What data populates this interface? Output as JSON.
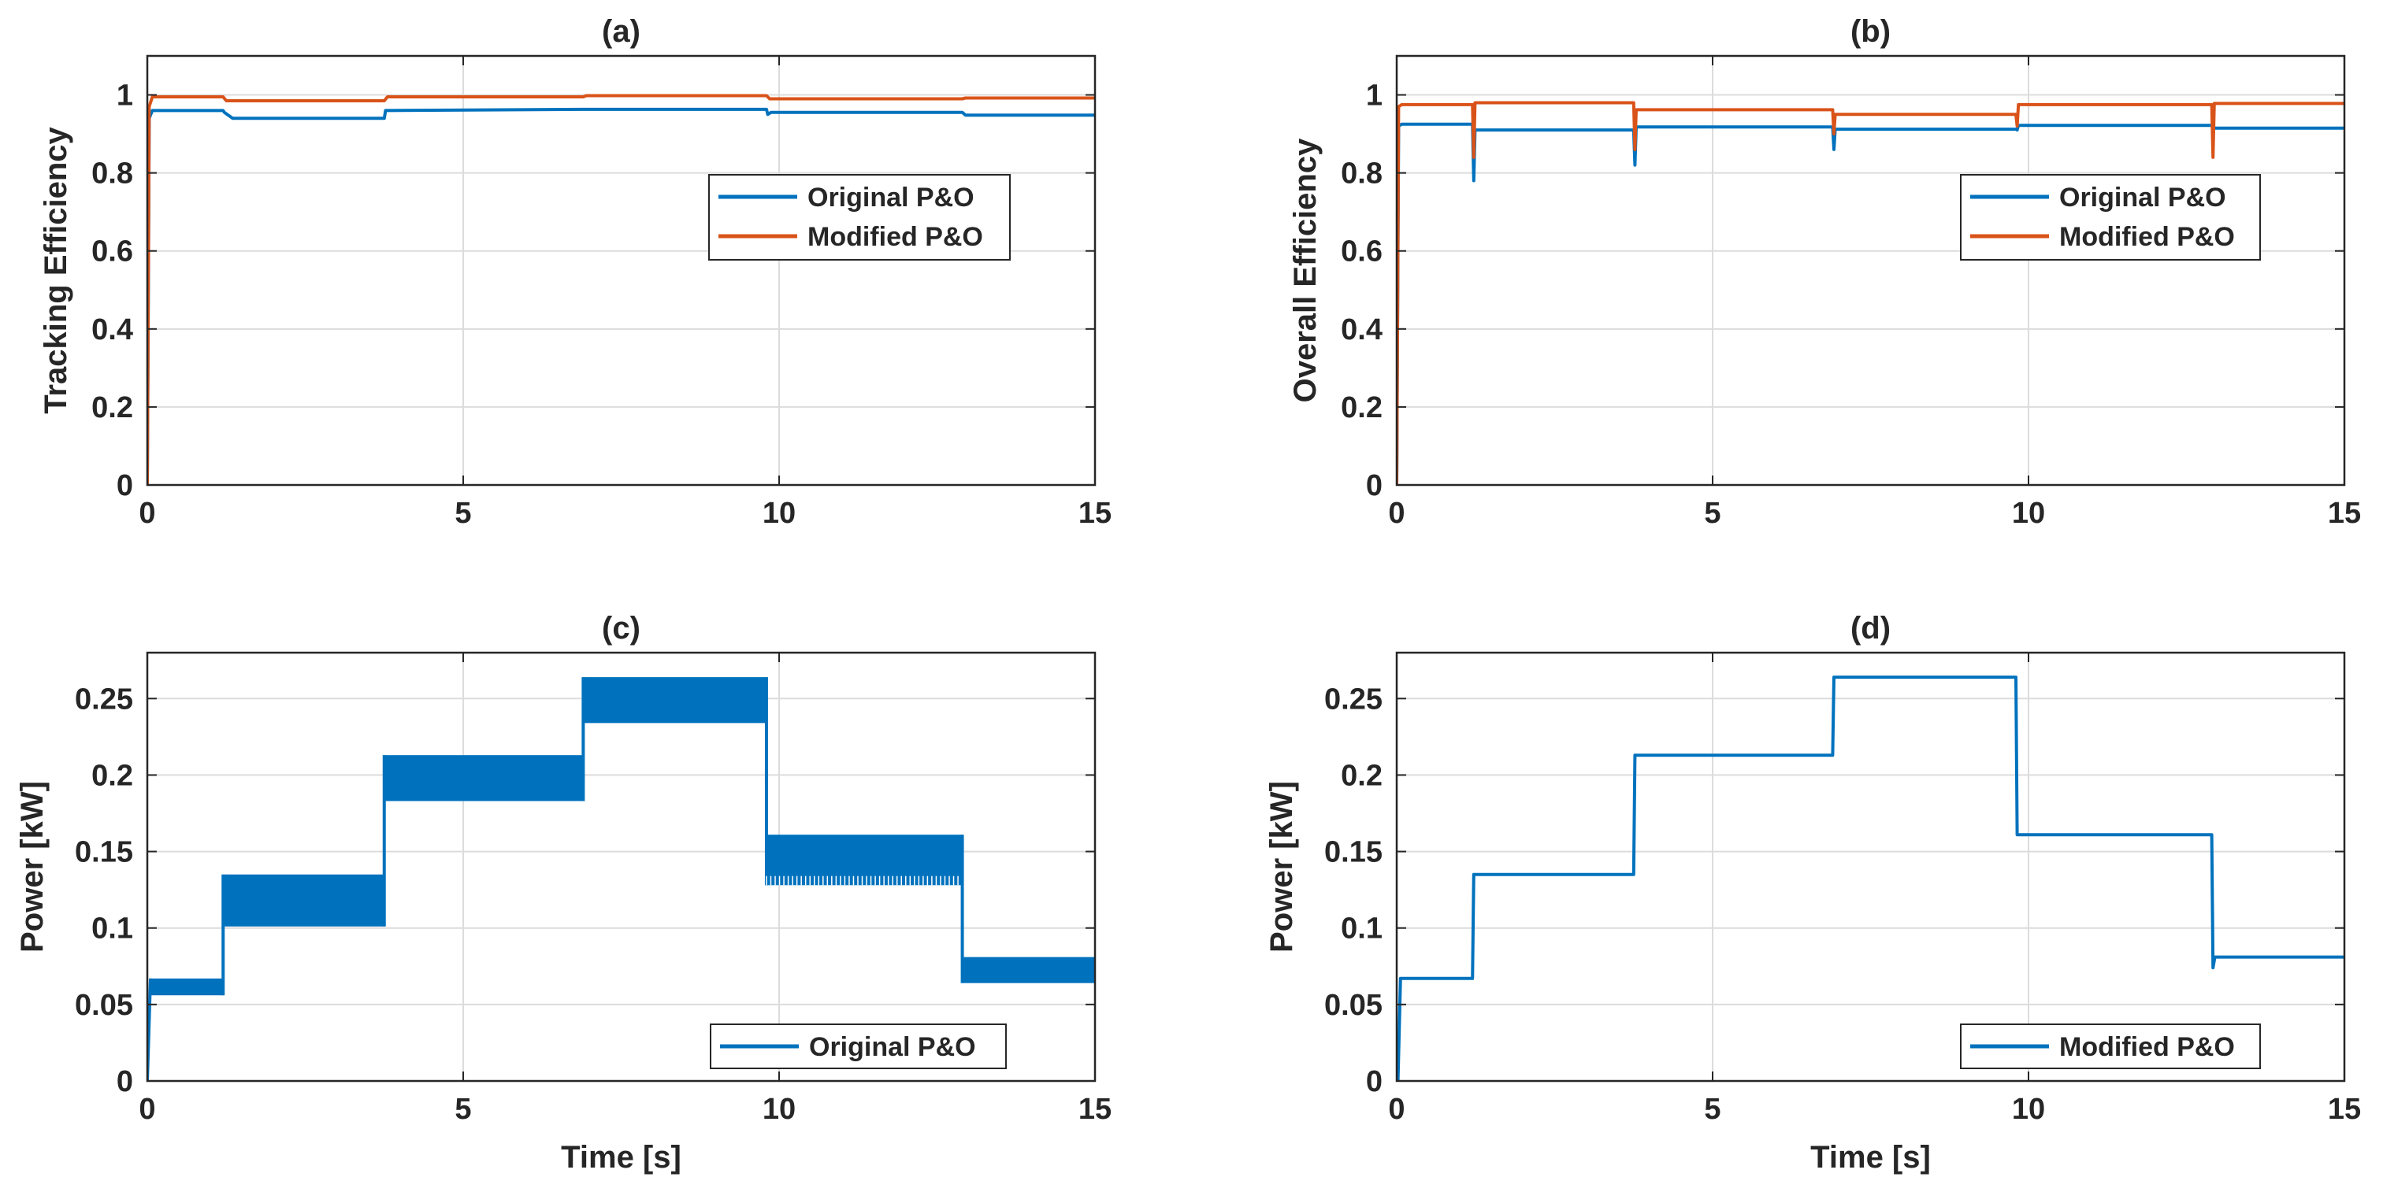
{
  "figure": {
    "colors": {
      "series1": "#0072BD",
      "series2": "#D95319",
      "axis": "#262626",
      "grid": "#dcdcdc"
    }
  },
  "chart_data": [
    {
      "id": "a",
      "type": "line",
      "title": "(a)",
      "xlabel": "",
      "ylabel": "Tracking Efficiency",
      "xlim": [
        0,
        15
      ],
      "ylim": [
        0,
        1.1
      ],
      "xticks": [
        0,
        5,
        10,
        15
      ],
      "xtick_labels": [
        "0",
        "5",
        "10",
        "15"
      ],
      "yticks": [
        0,
        0.2,
        0.4,
        0.6,
        0.8,
        1
      ],
      "ytick_labels": [
        "0",
        "0.2",
        "0.4",
        "0.6",
        "0.8",
        "1"
      ],
      "grid": true,
      "legend": {
        "position": "center-right",
        "entries": [
          "Original P&O",
          "Modified P&O"
        ]
      },
      "series": [
        {
          "name": "Original P&O",
          "color": "#0072BD",
          "width": 4,
          "x": [
            0,
            0.03,
            0.08,
            1.2,
            1.22,
            1.35,
            3.75,
            3.77,
            6.9,
            9.8,
            9.82,
            9.87,
            12.9,
            12.95,
            15
          ],
          "y": [
            0,
            0.94,
            0.96,
            0.96,
            0.955,
            0.94,
            0.94,
            0.96,
            0.963,
            0.963,
            0.95,
            0.955,
            0.955,
            0.948,
            0.948
          ]
        },
        {
          "name": "Modified P&O",
          "color": "#D95319",
          "width": 4,
          "x": [
            0,
            0.03,
            0.08,
            1.2,
            1.25,
            3.75,
            3.8,
            6.9,
            6.95,
            9.8,
            9.85,
            12.9,
            12.95,
            15
          ],
          "y": [
            0,
            0.97,
            0.995,
            0.995,
            0.985,
            0.985,
            0.995,
            0.995,
            0.998,
            0.998,
            0.99,
            0.99,
            0.992,
            0.992
          ]
        }
      ]
    },
    {
      "id": "b",
      "type": "line",
      "title": "(b)",
      "xlabel": "",
      "ylabel": "Overall Efficiency",
      "xlim": [
        0,
        15
      ],
      "ylim": [
        0,
        1.1
      ],
      "xticks": [
        0,
        5,
        10,
        15
      ],
      "xtick_labels": [
        "0",
        "5",
        "10",
        "15"
      ],
      "yticks": [
        0,
        0.2,
        0.4,
        0.6,
        0.8,
        1
      ],
      "ytick_labels": [
        "0",
        "0.2",
        "0.4",
        "0.6",
        "0.8",
        "1"
      ],
      "grid": true,
      "legend": {
        "position": "center-right",
        "entries": [
          "Original P&O",
          "Modified P&O"
        ]
      },
      "series": [
        {
          "name": "Original P&O",
          "color": "#0072BD",
          "width": 4,
          "x": [
            0,
            0.03,
            0.08,
            1.2,
            1.22,
            1.24,
            1.3,
            3.75,
            3.77,
            3.79,
            3.85,
            6.9,
            6.92,
            6.94,
            7.0,
            9.8,
            9.82,
            9.84,
            9.9,
            12.9,
            12.95,
            15
          ],
          "y": [
            0,
            0.92,
            0.925,
            0.925,
            0.78,
            0.91,
            0.91,
            0.91,
            0.82,
            0.918,
            0.918,
            0.918,
            0.86,
            0.912,
            0.912,
            0.912,
            0.91,
            0.922,
            0.922,
            0.922,
            0.915,
            0.915
          ]
        },
        {
          "name": "Modified P&O",
          "color": "#D95319",
          "width": 4,
          "x": [
            0,
            0.03,
            0.08,
            1.2,
            1.22,
            1.24,
            1.3,
            3.75,
            3.77,
            3.79,
            3.85,
            6.9,
            6.92,
            6.94,
            7.0,
            9.8,
            9.82,
            9.84,
            9.9,
            12.9,
            12.92,
            12.94,
            13.0,
            15
          ],
          "y": [
            0,
            0.97,
            0.975,
            0.975,
            0.84,
            0.98,
            0.98,
            0.98,
            0.86,
            0.962,
            0.962,
            0.962,
            0.9,
            0.95,
            0.95,
            0.95,
            0.92,
            0.975,
            0.975,
            0.975,
            0.84,
            0.978,
            0.978,
            0.978
          ]
        }
      ]
    },
    {
      "id": "c",
      "type": "area",
      "title": "(c)",
      "xlabel": "Time [s]",
      "ylabel": "Power [kW]",
      "xlim": [
        0,
        15
      ],
      "ylim": [
        0,
        0.28
      ],
      "xticks": [
        0,
        5,
        10,
        15
      ],
      "xtick_labels": [
        "0",
        "5",
        "10",
        "15"
      ],
      "yticks": [
        0,
        0.05,
        0.1,
        0.15,
        0.2,
        0.25
      ],
      "ytick_labels": [
        "0",
        "0.05",
        "0.1",
        "0.15",
        "0.2",
        "0.25"
      ],
      "grid": true,
      "legend": {
        "position": "bottom-right",
        "entries": [
          "Original P&O"
        ]
      },
      "series": [
        {
          "name": "Original P&O",
          "color": "#0072BD",
          "bands": [
            {
              "x0": 0.05,
              "x1": 1.2,
              "ymin": 0.056,
              "ymax": 0.067
            },
            {
              "x0": 1.2,
              "x1": 3.75,
              "ymin": 0.101,
              "ymax": 0.135
            },
            {
              "x0": 3.75,
              "x1": 6.9,
              "ymin": 0.183,
              "ymax": 0.213
            },
            {
              "x0": 6.9,
              "x1": 9.8,
              "ymin": 0.234,
              "ymax": 0.264
            },
            {
              "x0": 9.8,
              "x1": 12.9,
              "ymin": 0.128,
              "ymax": 0.161
            },
            {
              "x0": 12.9,
              "x1": 15,
              "ymin": 0.064,
              "ymax": 0.081
            }
          ]
        }
      ]
    },
    {
      "id": "d",
      "type": "line",
      "title": "(d)",
      "xlabel": "Time [s]",
      "ylabel": "Power [kW]",
      "xlim": [
        0,
        15
      ],
      "ylim": [
        0,
        0.28
      ],
      "xticks": [
        0,
        5,
        10,
        15
      ],
      "xtick_labels": [
        "0",
        "5",
        "10",
        "15"
      ],
      "yticks": [
        0,
        0.05,
        0.1,
        0.15,
        0.2,
        0.25
      ],
      "ytick_labels": [
        "0",
        "0.05",
        "0.1",
        "0.15",
        "0.2",
        "0.25"
      ],
      "grid": true,
      "legend": {
        "position": "bottom-right",
        "entries": [
          "Modified P&O"
        ]
      },
      "series": [
        {
          "name": "Modified P&O",
          "color": "#0072BD",
          "width": 4,
          "x": [
            0,
            0.02,
            0.06,
            1.2,
            1.22,
            3.75,
            3.77,
            6.9,
            6.92,
            9.8,
            9.82,
            12.9,
            12.92,
            12.95,
            15
          ],
          "y": [
            0,
            0.0,
            0.067,
            0.067,
            0.135,
            0.135,
            0.213,
            0.213,
            0.264,
            0.264,
            0.161,
            0.161,
            0.074,
            0.081,
            0.081
          ]
        }
      ]
    }
  ]
}
